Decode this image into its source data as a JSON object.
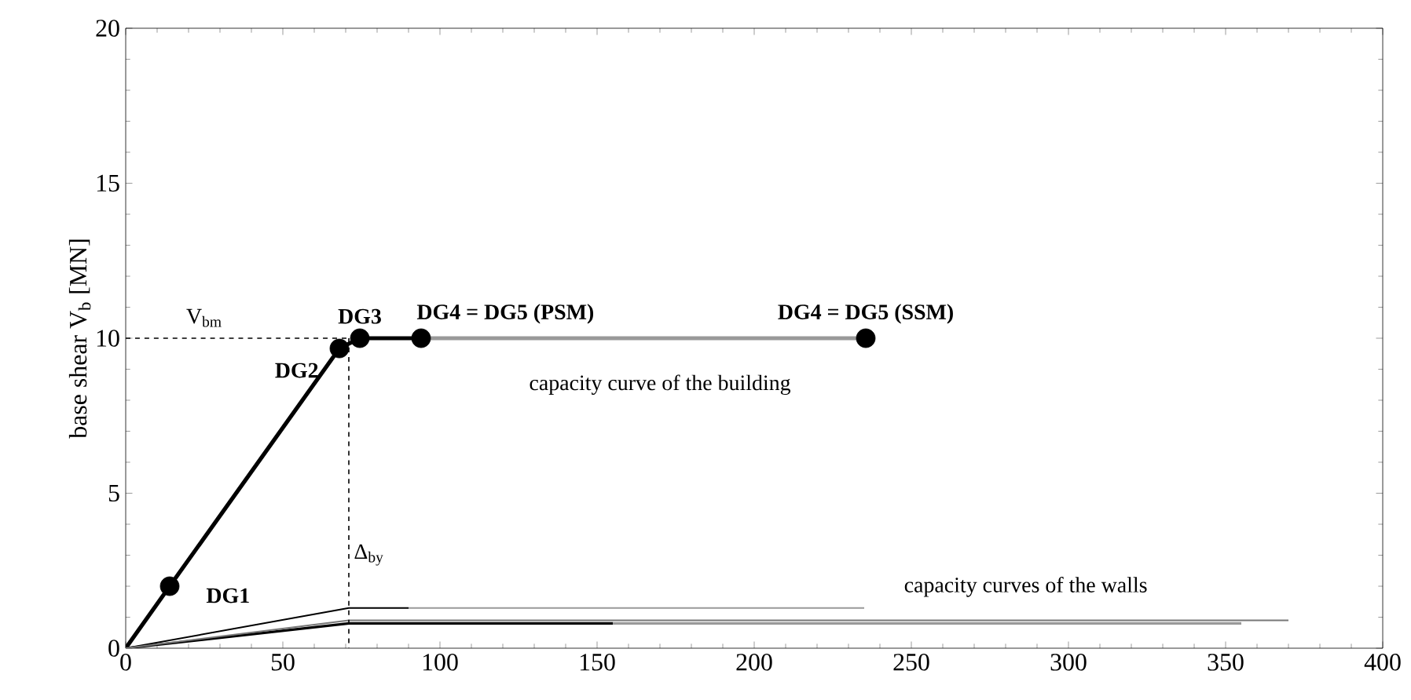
{
  "chart_data": {
    "type": "line",
    "ylabel": "base shear V$_{b}$ [MN]",
    "xlim": [
      0,
      400
    ],
    "ylim": [
      0,
      20
    ],
    "xticks": [
      0,
      50,
      100,
      150,
      200,
      250,
      300,
      350,
      400
    ],
    "yticks": [
      0,
      5,
      10,
      15,
      20
    ],
    "grid": false,
    "line_style": "solid",
    "marker": "none",
    "series": [
      {
        "color": "#000000",
        "x": [
          0,
          14,
          68,
          74.5,
          94
        ],
        "values": [
          0,
          2,
          9.67,
          10,
          10
        ]
      },
      {
        "color": "#999999",
        "x": [
          94,
          235.5
        ],
        "values": [
          10,
          10
        ]
      },
      {
        "color": "#000000",
        "x": [
          0,
          71,
          90
        ],
        "values": [
          0,
          1.3,
          1.3
        ]
      },
      {
        "color": "#999999",
        "x": [
          90,
          235
        ],
        "values": [
          1.3,
          1.3
        ]
      },
      {
        "color": "#000000",
        "x": [
          0,
          71,
          155
        ],
        "values": [
          0,
          0.8,
          0.8
        ]
      },
      {
        "color": "#999999",
        "x": [
          155,
          355
        ],
        "values": [
          0.8,
          0.8
        ]
      },
      {
        "color": "#777777",
        "x": [
          0,
          71,
          370
        ],
        "values": [
          0,
          0.9,
          0.9
        ]
      },
      {
        "color": "#000000",
        "line_style": "dashed",
        "x": [
          0,
          71
        ],
        "values": [
          10,
          10
        ]
      },
      {
        "color": "#000000",
        "line_style": "dashed",
        "x": [
          71,
          71
        ],
        "values": [
          10,
          0
        ]
      },
      {
        "type": "scatter",
        "marker": "circle",
        "color": "#000000",
        "x": [
          14,
          68,
          74.5,
          94,
          235.5
        ],
        "values": [
          2,
          9.67,
          10,
          10,
          10
        ]
      }
    ],
    "annotations": [
      {
        "text": "**DG1**",
        "x": 14,
        "y": 2
      },
      {
        "text": "**DG2**",
        "x": 68,
        "y": 9.67
      },
      {
        "text": "**DG3**",
        "x": 74.5,
        "y": 10
      },
      {
        "text": "**DG4 = DG5 (PSM)**",
        "x": 94,
        "y": 10
      },
      {
        "text": "**DG4 = DG5 (SSM)**",
        "x": 235.5,
        "y": 10
      },
      {
        "text": "V$_{bm}$",
        "x": 0,
        "y": 10
      },
      {
        "text": "Δ$_{by}$",
        "x": 71,
        "y": 2
      },
      "capacity curve of the building",
      "capacity curves of the walls"
    ]
  }
}
